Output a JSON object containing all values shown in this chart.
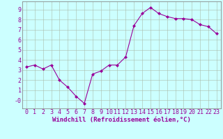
{
  "xlabel": "Windchill (Refroidissement éolien,°C)",
  "x": [
    0,
    1,
    2,
    3,
    4,
    5,
    6,
    7,
    8,
    9,
    10,
    11,
    12,
    13,
    14,
    15,
    16,
    17,
    18,
    19,
    20,
    21,
    22,
    23
  ],
  "y": [
    3.3,
    3.5,
    3.1,
    3.5,
    2.0,
    1.3,
    0.4,
    -0.3,
    2.6,
    2.9,
    3.5,
    3.5,
    4.3,
    7.4,
    8.6,
    9.2,
    8.6,
    8.3,
    8.1,
    8.1,
    8.0,
    7.5,
    7.3,
    6.6
  ],
  "line_color": "#990099",
  "marker": "D",
  "marker_size": 2.0,
  "bg_color": "#ccffff",
  "grid_color": "#aabbaa",
  "ylim": [
    -0.8,
    9.8
  ],
  "xlim": [
    -0.5,
    23.5
  ],
  "yticks": [
    0,
    1,
    2,
    3,
    4,
    5,
    6,
    7,
    8,
    9
  ],
  "ytick_labels": [
    "-0",
    "1",
    "2",
    "3",
    "4",
    "5",
    "6",
    "7",
    "8",
    "9"
  ],
  "xticks": [
    0,
    1,
    2,
    3,
    4,
    5,
    6,
    7,
    8,
    9,
    10,
    11,
    12,
    13,
    14,
    15,
    16,
    17,
    18,
    19,
    20,
    21,
    22,
    23
  ],
  "tick_label_color": "#990099",
  "axis_label_color": "#990099",
  "label_fontsize": 6.5,
  "tick_fontsize": 6.0,
  "spine_color": "#888888",
  "line_width": 0.8
}
